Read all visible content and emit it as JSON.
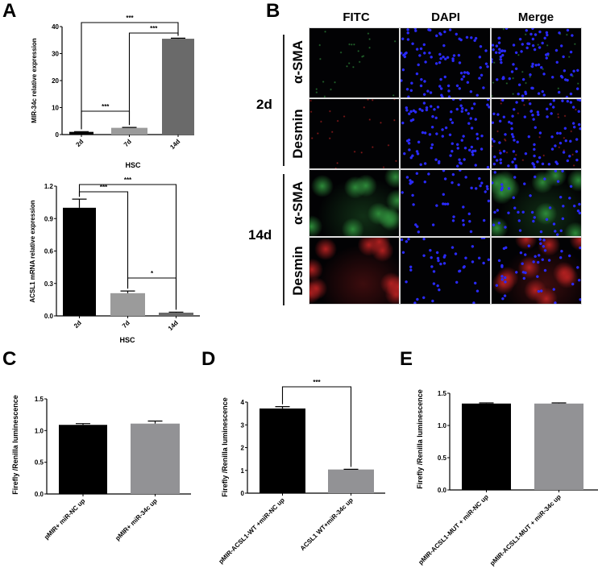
{
  "panel_labels": {
    "a": "A",
    "b": "B",
    "c": "C",
    "d": "D",
    "e": "E"
  },
  "panel_b": {
    "columns": [
      "FITC",
      "DAPI",
      "Merge"
    ],
    "groups": [
      {
        "label": "2d",
        "rows": [
          "α-SMA",
          "Desmin"
        ]
      },
      {
        "label": "14d",
        "rows": [
          "α-SMA",
          "Desmin"
        ]
      }
    ],
    "channel_colors": {
      "FITC_aSMA": "#2e8b3a",
      "FITC_Desmin": "#b02020",
      "DAPI": "#2a2aff"
    }
  },
  "chart_data": [
    {
      "id": "a1",
      "type": "bar",
      "title": "",
      "xlabel": "HSC",
      "ylabel": "MIR-34c relative expression",
      "categories": [
        "2d",
        "7d",
        "14d"
      ],
      "values": [
        1.0,
        2.5,
        35.5
      ],
      "errors": [
        0.1,
        0.15,
        0.2
      ],
      "ylim": [
        0,
        40
      ],
      "yticks": [
        "0",
        "10",
        "20",
        "30",
        "40"
      ],
      "tick_values": [
        0,
        10,
        20,
        30,
        40
      ],
      "colors": [
        "#000000",
        "#9b9b9b",
        "#6a6a6a"
      ],
      "grid": false,
      "comparisons": [
        {
          "a": 0,
          "b": 1,
          "label": "***"
        },
        {
          "a": 1,
          "b": 2,
          "label": "***"
        },
        {
          "a": 0,
          "b": 2,
          "label": "***"
        }
      ]
    },
    {
      "id": "a2",
      "type": "bar",
      "title": "",
      "xlabel": "HSC",
      "ylabel": "ACSL1 mRNA relative expression",
      "categories": [
        "2d",
        "7d",
        "14d"
      ],
      "values": [
        1.0,
        0.21,
        0.03
      ],
      "errors": [
        0.08,
        0.02,
        0.005
      ],
      "ylim": [
        0,
        1.2
      ],
      "yticks": [
        "0.0",
        "0.3",
        "0.6",
        "0.9",
        "1.2"
      ],
      "tick_values": [
        0,
        0.3,
        0.6,
        0.9,
        1.2
      ],
      "colors": [
        "#000000",
        "#9b9b9b",
        "#6a6a6a"
      ],
      "grid": false,
      "comparisons": [
        {
          "a": 0,
          "b": 1,
          "label": "***"
        },
        {
          "a": 0,
          "b": 2,
          "label": "***"
        },
        {
          "a": 1,
          "b": 2,
          "label": "*"
        }
      ]
    },
    {
      "id": "c",
      "type": "bar",
      "title": "",
      "xlabel": "",
      "ylabel": "Firefly /Renilla luminescence",
      "categories": [
        "pMIR+ miR-NC up",
        "pMIR+ miR-34c up"
      ],
      "values": [
        1.09,
        1.11
      ],
      "errors": [
        0.02,
        0.04
      ],
      "ylim": [
        0,
        1.5
      ],
      "yticks": [
        "0.0",
        "0.5",
        "1.0",
        "1.5"
      ],
      "tick_values": [
        0,
        0.5,
        1.0,
        1.5
      ],
      "colors": [
        "#000000",
        "#929295"
      ],
      "grid": false,
      "comparisons": []
    },
    {
      "id": "d",
      "type": "bar",
      "title": "",
      "xlabel": "",
      "ylabel": "Firefly /Renilla luminescence",
      "categories": [
        "pMIR-ACSL1-WT +miR-NC up",
        "ACSL1 WT+miR-34c up"
      ],
      "values": [
        3.72,
        1.04
      ],
      "errors": [
        0.08,
        0.01
      ],
      "ylim": [
        0,
        4
      ],
      "yticks": [
        "0",
        "1",
        "2",
        "3",
        "4"
      ],
      "tick_values": [
        0,
        1,
        2,
        3,
        4
      ],
      "colors": [
        "#000000",
        "#929295"
      ],
      "grid": false,
      "comparisons": [
        {
          "a": 0,
          "b": 1,
          "label": "***"
        }
      ]
    },
    {
      "id": "e",
      "type": "bar",
      "title": "",
      "xlabel": "",
      "ylabel": "Firefly /Renilla luminescence",
      "categories": [
        "pMIR-ACSL1-MUT + miR-NC up",
        "pMIR-ACSL1-MUT + miR-34c up"
      ],
      "values": [
        1.34,
        1.34
      ],
      "errors": [
        0.01,
        0.01
      ],
      "ylim": [
        0,
        1.5
      ],
      "yticks": [
        "0.0",
        "0.5",
        "1.0",
        "1.5"
      ],
      "tick_values": [
        0,
        0.5,
        1.0,
        1.5
      ],
      "colors": [
        "#000000",
        "#929295"
      ],
      "grid": false,
      "comparisons": []
    }
  ]
}
